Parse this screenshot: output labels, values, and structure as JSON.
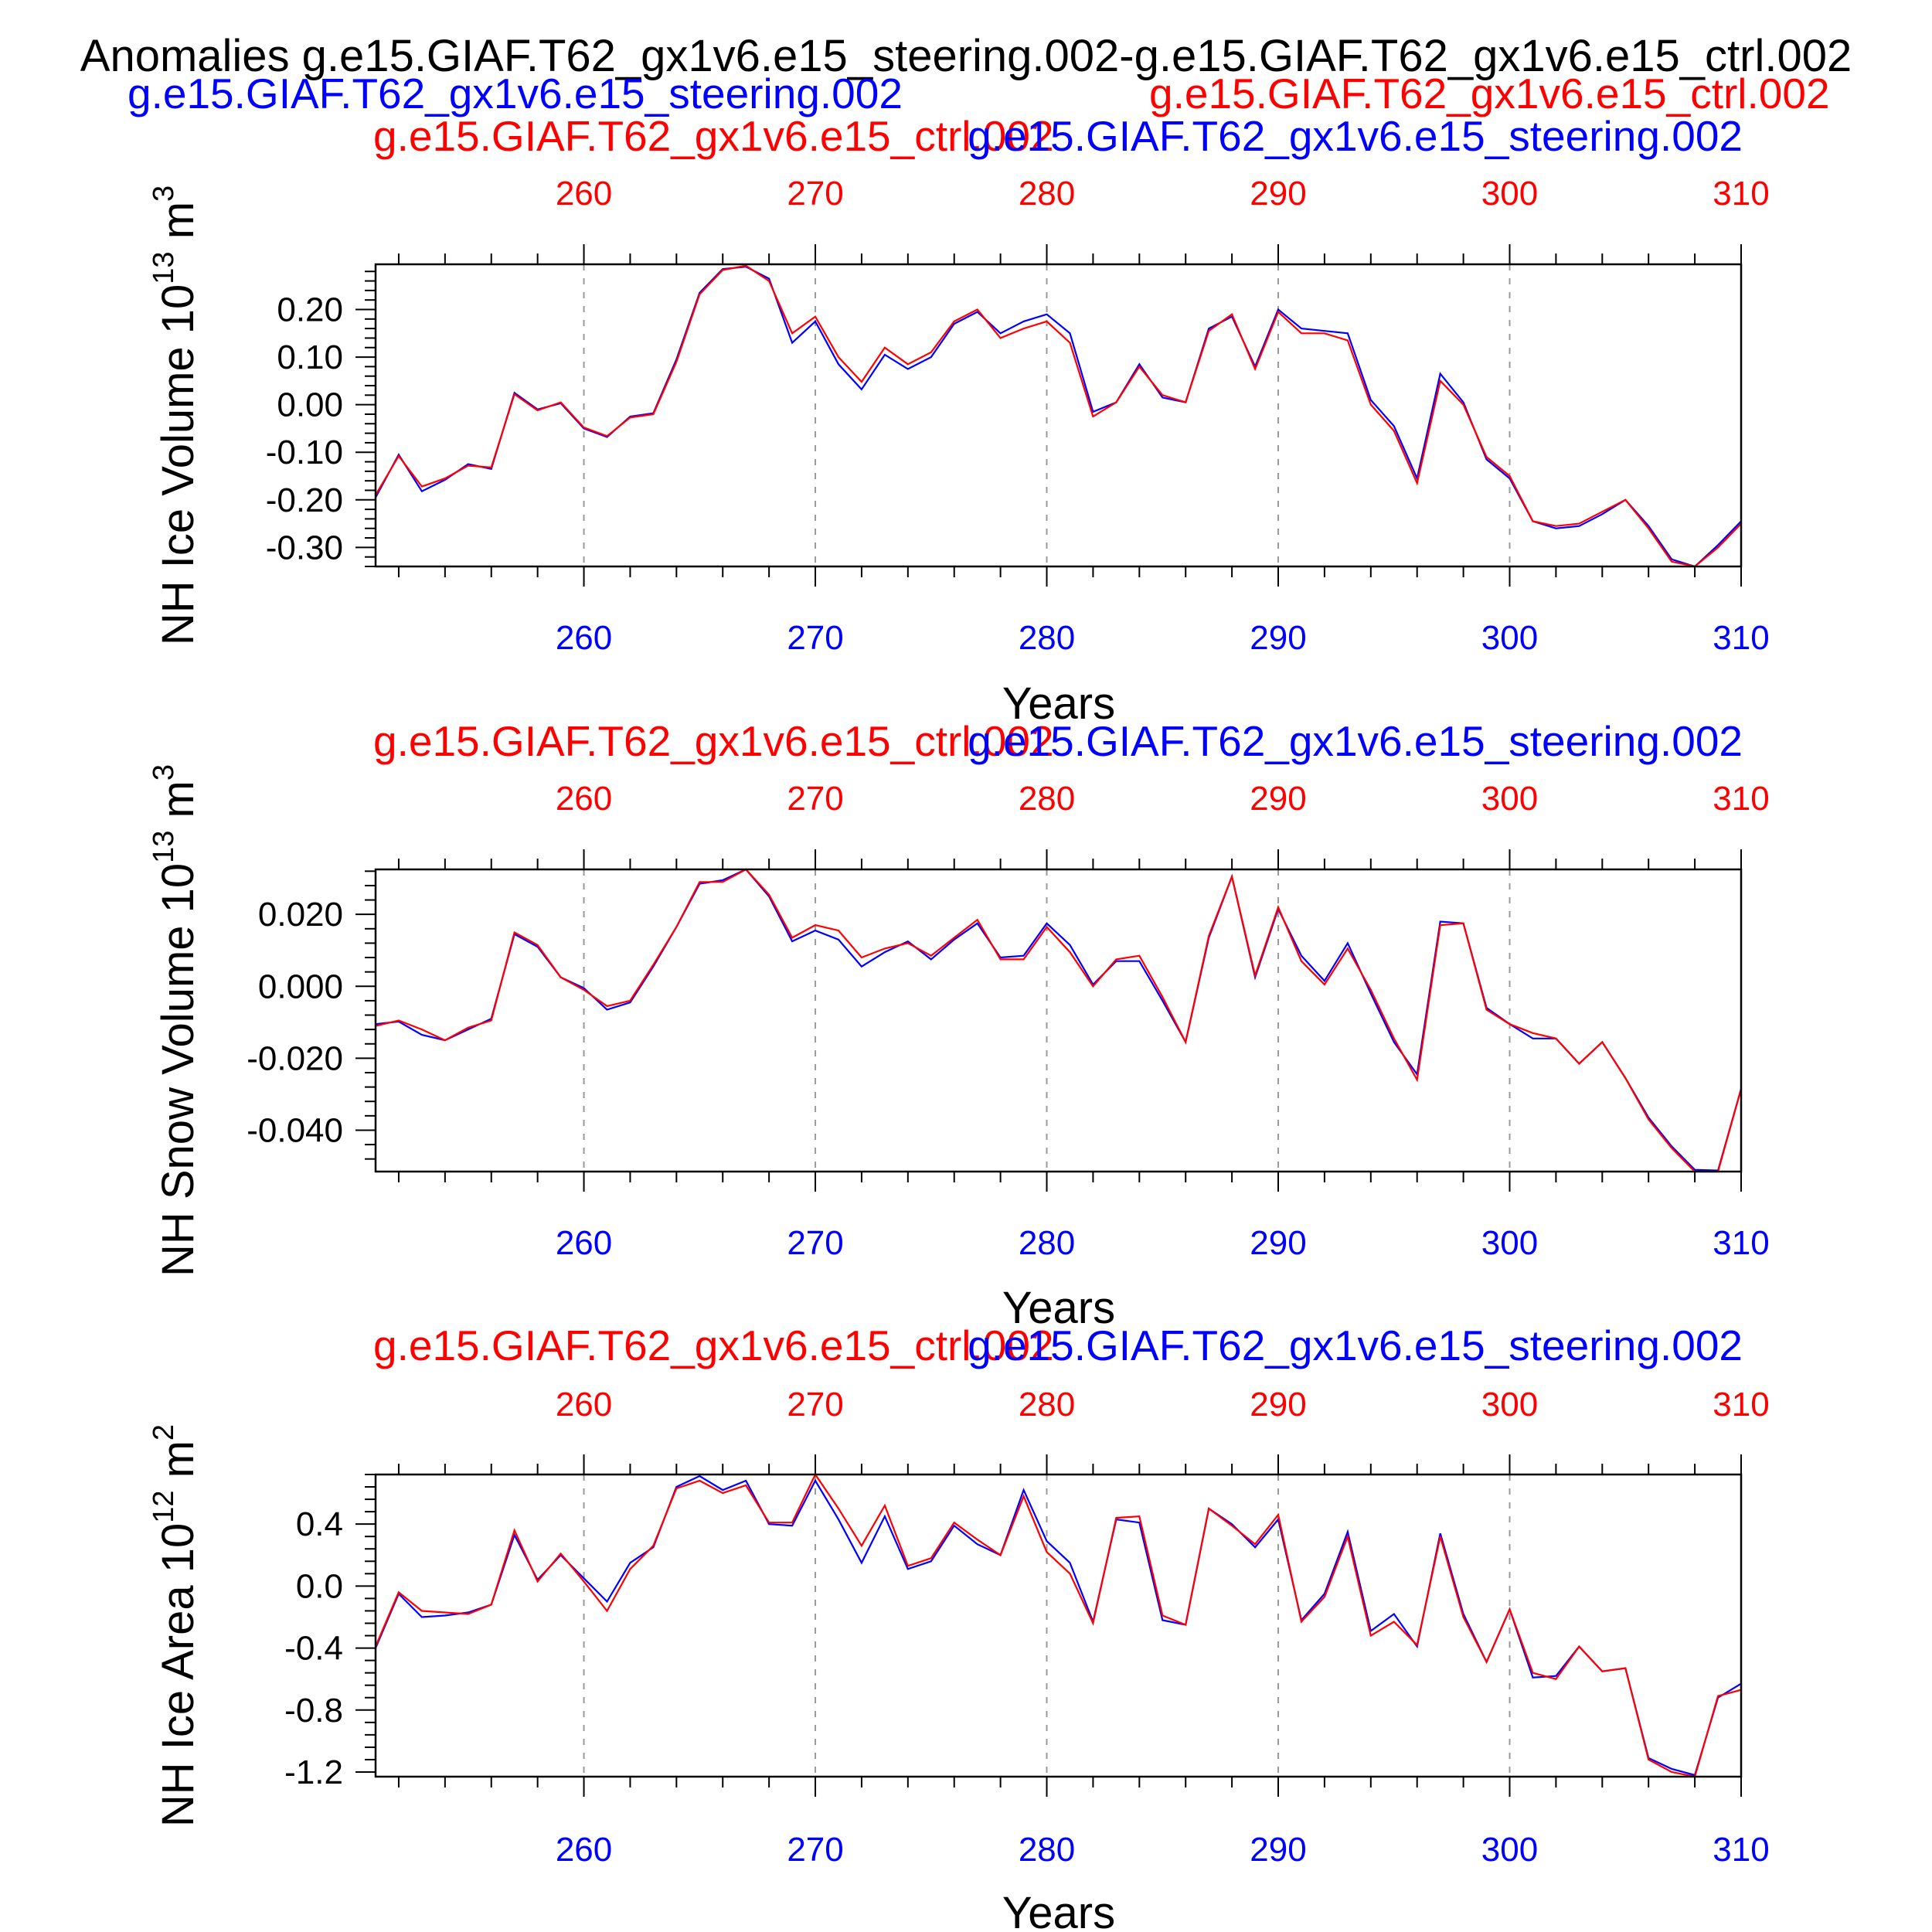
{
  "figure": {
    "main_title": "Anomalies g.e15.GIAF.T62_gx1v6.e15_steering.002-g.e15.GIAF.T62_gx1v6.e15_ctrl.002",
    "case_blue": "g.e15.GIAF.T62_gx1v6.e15_steering.002",
    "case_red": "g.e15.GIAF.T62_gx1v6.e15_ctrl.002",
    "panel_title_red": "g.e15.GIAF.T62_gx1v6.e15_ctrl.002",
    "panel_title_blue": "g.e15.GIAF.T62_gx1v6.e15_steering.002",
    "xlabel": "Years",
    "colors": {
      "blue": "#0000ff",
      "red": "#ff0000",
      "axis": "#000000",
      "grid": "#9a9a9a"
    }
  },
  "chart_data": [
    {
      "type": "line",
      "ylabel": "NH Ice Volume 10",
      "ylabel_exp": "13",
      "ylabel_unit": " m",
      "ylabel_unit_exp": "3",
      "xlabel": "Years",
      "x_start": 251,
      "x_end": 310,
      "xlim": [
        251,
        310
      ],
      "ylim": [
        -0.34,
        0.295
      ],
      "xticks": [
        260,
        270,
        280,
        290,
        300,
        310
      ],
      "yticks": [
        0.2,
        0.1,
        0.0,
        -0.1,
        -0.2,
        -0.3
      ],
      "ytick_labels": [
        "0.20",
        "0.10",
        "0.00",
        "-0.10",
        "-0.20",
        "-0.30"
      ],
      "grid": "vertical dashed at decades",
      "series": [
        {
          "name": "g.e15.GIAF.T62_gx1v6.e15_steering.002",
          "color": "#0000ff",
          "values": [
            -0.195,
            -0.105,
            -0.182,
            -0.158,
            -0.125,
            -0.135,
            0.025,
            -0.01,
            0.003,
            -0.05,
            -0.068,
            -0.025,
            -0.018,
            0.095,
            0.235,
            0.285,
            0.29,
            0.265,
            0.13,
            0.175,
            0.085,
            0.032,
            0.105,
            0.075,
            0.1,
            0.17,
            0.195,
            0.15,
            0.175,
            0.19,
            0.15,
            -0.015,
            0.005,
            0.085,
            0.015,
            0.005,
            0.16,
            0.185,
            0.08,
            0.2,
            0.16,
            0.155,
            0.15,
            0.01,
            -0.045,
            -0.155,
            0.065,
            0.005,
            -0.115,
            -0.155,
            -0.245,
            -0.26,
            -0.255,
            -0.23,
            -0.2,
            -0.255,
            -0.325,
            -0.34,
            -0.295,
            -0.245
          ]
        },
        {
          "name": "g.e15.GIAF.T62_gx1v6.e15_ctrl.002",
          "color": "#ff0000",
          "values": [
            -0.19,
            -0.108,
            -0.172,
            -0.155,
            -0.128,
            -0.132,
            0.022,
            -0.012,
            0.005,
            -0.048,
            -0.066,
            -0.027,
            -0.02,
            0.09,
            0.232,
            0.283,
            0.292,
            0.26,
            0.15,
            0.185,
            0.1,
            0.048,
            0.12,
            0.085,
            0.11,
            0.175,
            0.2,
            0.14,
            0.16,
            0.175,
            0.13,
            -0.025,
            0.005,
            0.08,
            0.02,
            0.005,
            0.155,
            0.19,
            0.075,
            0.195,
            0.15,
            0.15,
            0.135,
            0.0,
            -0.055,
            -0.165,
            0.05,
            0.0,
            -0.11,
            -0.15,
            -0.245,
            -0.255,
            -0.25,
            -0.225,
            -0.2,
            -0.26,
            -0.33,
            -0.34,
            -0.3,
            -0.25
          ]
        }
      ]
    },
    {
      "type": "line",
      "ylabel": "NH Snow Volume 10",
      "ylabel_exp": "13",
      "ylabel_unit": " m",
      "ylabel_unit_exp": "3",
      "xlabel": "Years",
      "x_start": 251,
      "x_end": 310,
      "xlim": [
        251,
        310
      ],
      "ylim": [
        -0.0515,
        0.0325
      ],
      "xticks": [
        260,
        270,
        280,
        290,
        300,
        310
      ],
      "yticks": [
        0.02,
        0.0,
        -0.02,
        -0.04
      ],
      "ytick_labels": [
        "0.020",
        "0.000",
        "-0.020",
        "-0.040"
      ],
      "grid": "vertical dashed at decades",
      "series": [
        {
          "name": "g.e15.GIAF.T62_gx1v6.e15_steering.002",
          "color": "#0000ff",
          "values": [
            -0.0105,
            -0.0098,
            -0.0135,
            -0.015,
            -0.012,
            -0.009,
            0.0145,
            0.011,
            0.0025,
            -0.0005,
            -0.0065,
            -0.0045,
            0.0055,
            0.0165,
            0.0285,
            0.0295,
            0.0325,
            0.025,
            0.0125,
            0.0155,
            0.013,
            0.0055,
            0.0095,
            0.0125,
            0.0075,
            0.013,
            0.0175,
            0.008,
            0.0085,
            0.0175,
            0.0115,
            0.0005,
            0.007,
            0.007,
            -0.004,
            -0.0155,
            0.0135,
            0.0305,
            0.0025,
            0.0215,
            0.0085,
            0.0015,
            0.012,
            -0.002,
            -0.0155,
            -0.0245,
            0.018,
            0.0175,
            -0.006,
            -0.0105,
            -0.0145,
            -0.0145,
            -0.0215,
            -0.0155,
            -0.0255,
            -0.0365,
            -0.0445,
            -0.051,
            -0.0512,
            -0.0285
          ]
        },
        {
          "name": "g.e15.GIAF.T62_gx1v6.e15_ctrl.002",
          "color": "#ff0000",
          "values": [
            -0.011,
            -0.0095,
            -0.012,
            -0.015,
            -0.0115,
            -0.0095,
            0.015,
            0.0115,
            0.0025,
            -0.001,
            -0.0055,
            -0.004,
            0.006,
            0.0165,
            0.029,
            0.029,
            0.0325,
            0.0255,
            0.0135,
            0.017,
            0.0155,
            0.008,
            0.0105,
            0.012,
            0.0085,
            0.0135,
            0.0185,
            0.0075,
            0.0075,
            0.0165,
            0.0095,
            0.0,
            0.0075,
            0.0085,
            -0.003,
            -0.0155,
            0.014,
            0.0305,
            0.003,
            0.022,
            0.007,
            0.0005,
            0.0105,
            -0.001,
            -0.0145,
            -0.026,
            0.017,
            0.0175,
            -0.0065,
            -0.0105,
            -0.013,
            -0.0145,
            -0.0215,
            -0.0155,
            -0.0255,
            -0.037,
            -0.045,
            -0.0515,
            -0.0515,
            -0.0285
          ]
        }
      ]
    },
    {
      "type": "line",
      "ylabel": "NH Ice Area 10",
      "ylabel_exp": "12",
      "ylabel_unit": " m",
      "ylabel_unit_exp": "2",
      "xlabel": "Years",
      "x_start": 251,
      "x_end": 310,
      "xlim": [
        251,
        310
      ],
      "ylim": [
        -1.23,
        0.72
      ],
      "xticks": [
        260,
        270,
        280,
        290,
        300,
        310
      ],
      "yticks": [
        0.4,
        0.0,
        -0.4,
        -0.8,
        -1.2
      ],
      "ytick_labels": [
        "0.4",
        "0.0",
        "-0.4",
        "-0.8",
        "-1.2"
      ],
      "grid": "vertical dashed at decades",
      "series": [
        {
          "name": "g.e15.GIAF.T62_gx1v6.e15_steering.002",
          "color": "#0000ff",
          "values": [
            -0.4,
            -0.05,
            -0.2,
            -0.19,
            -0.17,
            -0.12,
            0.33,
            0.04,
            0.2,
            0.05,
            -0.1,
            0.15,
            0.25,
            0.64,
            0.71,
            0.62,
            0.68,
            0.4,
            0.39,
            0.68,
            0.43,
            0.15,
            0.45,
            0.11,
            0.16,
            0.39,
            0.27,
            0.2,
            0.62,
            0.29,
            0.15,
            -0.23,
            0.43,
            0.41,
            -0.22,
            -0.25,
            0.5,
            0.4,
            0.25,
            0.43,
            -0.22,
            -0.05,
            0.35,
            -0.29,
            -0.18,
            -0.39,
            0.34,
            -0.18,
            -0.49,
            -0.15,
            -0.59,
            -0.58,
            -0.39,
            -0.55,
            -0.53,
            -1.11,
            -1.18,
            -1.22,
            -0.72,
            -0.63
          ]
        },
        {
          "name": "g.e15.GIAF.T62_gx1v6.e15_ctrl.002",
          "color": "#ff0000",
          "values": [
            -0.39,
            -0.04,
            -0.16,
            -0.17,
            -0.18,
            -0.12,
            0.36,
            0.03,
            0.21,
            0.03,
            -0.16,
            0.11,
            0.26,
            0.63,
            0.68,
            0.6,
            0.65,
            0.41,
            0.41,
            0.72,
            0.5,
            0.26,
            0.52,
            0.13,
            0.18,
            0.41,
            0.3,
            0.2,
            0.58,
            0.22,
            0.08,
            -0.24,
            0.44,
            0.45,
            -0.19,
            -0.25,
            0.5,
            0.39,
            0.27,
            0.46,
            -0.23,
            -0.07,
            0.32,
            -0.32,
            -0.23,
            -0.38,
            0.32,
            -0.2,
            -0.49,
            -0.15,
            -0.56,
            -0.6,
            -0.39,
            -0.55,
            -0.53,
            -1.12,
            -1.2,
            -1.23,
            -0.71,
            -0.67
          ]
        }
      ]
    }
  ]
}
